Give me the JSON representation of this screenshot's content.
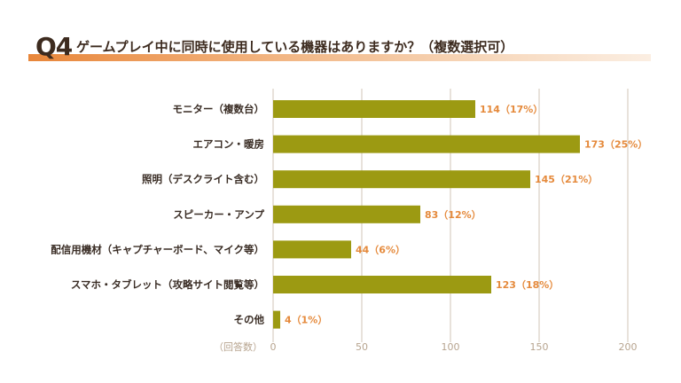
{
  "header": {
    "q_number": "Q4",
    "question": "ゲームプレイ中に同時に使用している機器はありますか？（複数選択可）"
  },
  "colors": {
    "bar": "#9c9a12",
    "value_label": "#e58a3c",
    "grid": "#d9cfc3",
    "accent": "#e8863a"
  },
  "chart_data": {
    "type": "bar",
    "orientation": "horizontal",
    "categories": [
      "モニター（複数台）",
      "エアコン・暖房",
      "照明（デスクライト含む）",
      "スピーカー・アンプ",
      "配信用機材（キャプチャーボード、マイク等）",
      "スマホ・タブレット（攻略サイト閲覧等）",
      "その他"
    ],
    "values": [
      114,
      173,
      145,
      83,
      44,
      123,
      4
    ],
    "data_labels": [
      "114（17%）",
      "173（25%）",
      "145（21%）",
      "83（12%）",
      "44（6%）",
      "123（18%）",
      "4（1%）"
    ],
    "axis_unit_label": "（回答数）",
    "xlim": [
      0,
      200
    ],
    "xticks": [
      0,
      50,
      100,
      150,
      200
    ],
    "grid": true
  }
}
